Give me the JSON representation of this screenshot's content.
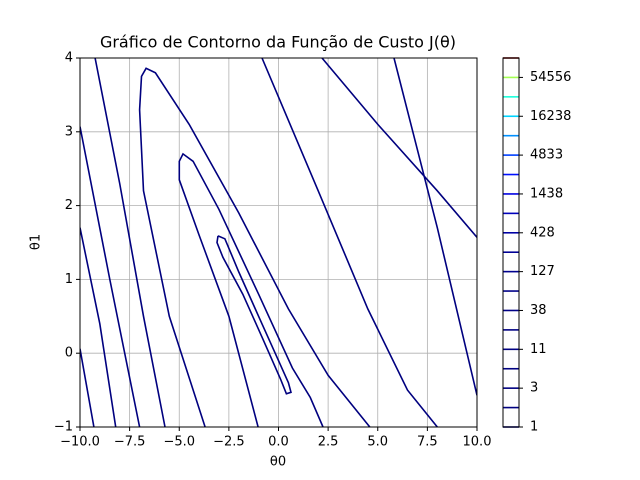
{
  "chart_data": {
    "type": "contour",
    "title": "Gráfico de Contorno da Função de Custo J(θ)",
    "xlabel": "θ0",
    "ylabel": "θ1",
    "xlim": [
      -10,
      10
    ],
    "ylim": [
      -1,
      4
    ],
    "xticks": [
      {
        "value": -10,
        "label": "−10.0"
      },
      {
        "value": -7.5,
        "label": "−7.5"
      },
      {
        "value": -5,
        "label": "−5.0"
      },
      {
        "value": -2.5,
        "label": "−2.5"
      },
      {
        "value": 0,
        "label": "0.0"
      },
      {
        "value": 2.5,
        "label": "2.5"
      },
      {
        "value": 5,
        "label": "5.0"
      },
      {
        "value": 7.5,
        "label": "7.5"
      },
      {
        "value": 10,
        "label": "10.0"
      }
    ],
    "yticks": [
      {
        "value": -1,
        "label": "−1"
      },
      0,
      1,
      2,
      3,
      4
    ],
    "grid": true,
    "contour_color": "#00007f",
    "contours": [
      {
        "x": [
          -3.05,
          -2.7,
          -2.0,
          -1.0,
          0.0,
          0.5,
          0.63,
          0.4,
          0.1,
          -0.8,
          -1.8,
          -2.8,
          -3.1,
          -3.05
        ],
        "y": [
          1.59,
          1.55,
          1.1,
          0.5,
          -0.1,
          -0.4,
          -0.53,
          -0.55,
          -0.35,
          0.2,
          0.8,
          1.3,
          1.5,
          1.59
        ]
      },
      {
        "x": [
          -1.03,
          -2.5,
          -4.0,
          -5.0,
          -5.0,
          -4.81,
          -4.3,
          -3.0,
          -1.0,
          0.7,
          1.6,
          2.24
        ],
        "y": [
          -1,
          0.5,
          1.6,
          2.35,
          2.6,
          2.7,
          2.6,
          1.95,
          0.8,
          -0.2,
          -0.6,
          -1
        ]
      },
      {
        "x": [
          -3.7,
          -5.5,
          -6.8,
          -7.0,
          -6.9,
          -6.67,
          -6.2,
          -4.5,
          -2.0,
          0.5,
          2.5,
          4.6
        ],
        "y": [
          -1,
          0.5,
          2.2,
          3.3,
          3.75,
          3.86,
          3.8,
          3.1,
          1.9,
          0.6,
          -0.3,
          -1
        ]
      },
      {
        "x": [
          -9.24,
          -8.0,
          -6.8,
          -5.72,
          null,
          -0.83,
          2.0,
          4.5,
          6.5,
          8.0
        ],
        "y": [
          4,
          2.3,
          0.5,
          -1,
          null,
          4,
          2.2,
          0.6,
          -0.5,
          -1
        ]
      },
      {
        "x": [
          -10,
          -8.5,
          -7.0,
          null,
          2.19,
          5.0,
          8.0,
          10
        ],
        "y": [
          3.07,
          1.0,
          -1,
          null,
          4,
          3.1,
          2.2,
          1.57
        ]
      },
      {
        "x": [
          -10,
          -9.0,
          -8.2,
          null,
          5.82,
          8.0,
          10
        ],
        "y": [
          1.7,
          0.4,
          -1,
          null,
          4,
          1.7,
          -0.57
        ]
      },
      {
        "x": [
          -10,
          -9.3
        ],
        "y": [
          0.06,
          -1
        ]
      }
    ],
    "levels": [
      1,
      1.833,
      3.36,
      6.16,
      11.29,
      20.69,
      37.93,
      69.52,
      127.4,
      233.6,
      428.1,
      784.8,
      1438.4,
      2636.7,
      4832.9,
      8858.7,
      16237.8,
      29763.5,
      54555.9,
      100000
    ],
    "level_colors": [
      "#000080",
      "#000080",
      "#000081",
      "#000081",
      "#000082",
      "#000083",
      "#000085",
      "#000088",
      "#00008e",
      "#000096",
      "#0000a4",
      "#0000bc",
      "#0000e3",
      "#0010ff",
      "#0040ff",
      "#0090ff",
      "#00d4ff",
      "#1cffda",
      "#a4ff53",
      "#7f0000"
    ],
    "colorbar_ticks": [
      1,
      {
        "value": 3.36,
        "label": "3"
      },
      {
        "value": 11.29,
        "label": "11"
      },
      {
        "value": 37.93,
        "label": "38"
      },
      {
        "value": 127.4,
        "label": "127"
      },
      {
        "value": 428.1,
        "label": "428"
      },
      {
        "value": 1438.4,
        "label": "1438"
      },
      {
        "value": 4832.9,
        "label": "4833"
      },
      {
        "value": 16237.8,
        "label": "16238"
      },
      {
        "value": 54555.9,
        "label": "54556"
      }
    ]
  }
}
